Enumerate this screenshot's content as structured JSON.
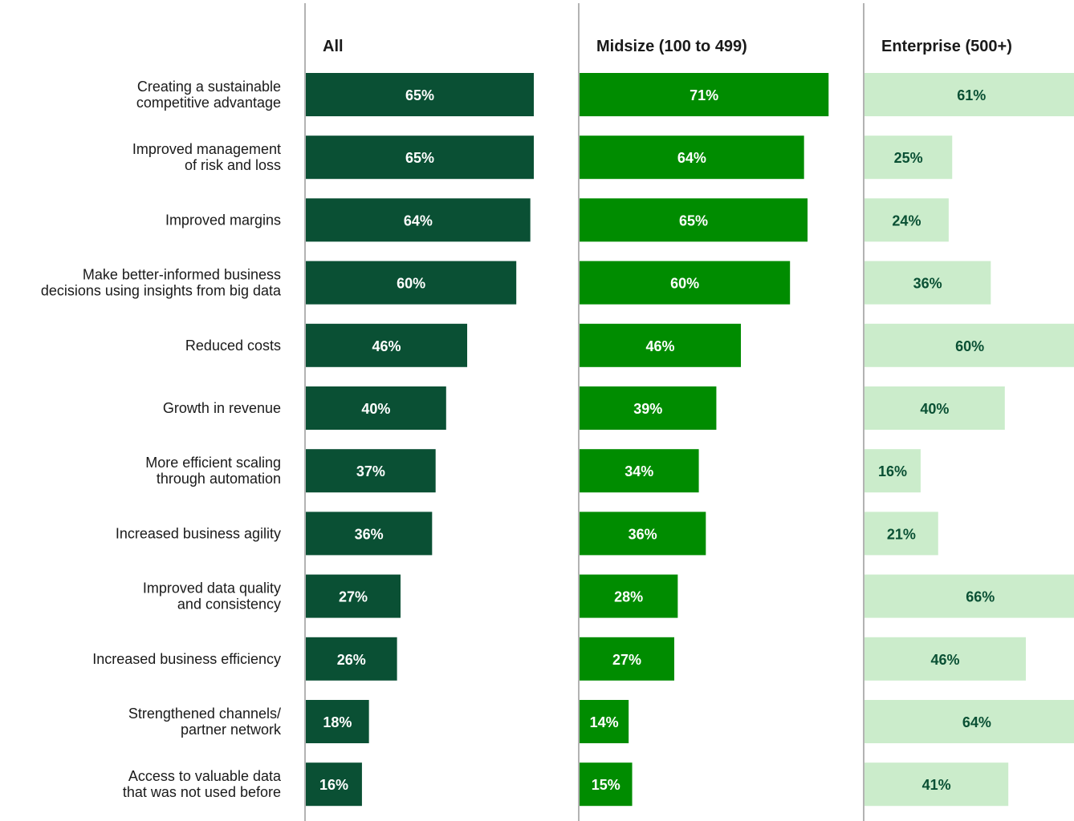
{
  "chart_data": {
    "type": "bar",
    "title": "",
    "colors": {
      "All": "#0a5034",
      "Midsize (100 to 499)": "#008c00",
      "Enterprise (500+)": "#cbeccb"
    },
    "label_colors": {
      "All": "#ffffff",
      "Midsize (100 to 499)": "#ffffff",
      "Enterprise (500+)": "#0a5034"
    },
    "categories": [
      "Creating a sustainable\ncompetitive advantage",
      "Improved management\nof risk and loss",
      "Improved margins",
      "Make better-informed business\ndecisions using insights from big data",
      "Reduced costs",
      "Growth in revenue",
      "More efficient scaling\nthrough automation",
      "Increased business agility",
      "Improved data quality\nand consistency",
      "Increased business efficiency",
      "Strengthened channels/\npartner network",
      "Access to valuable data\nthat was not used before"
    ],
    "series": [
      {
        "name": "All",
        "values": [
          65,
          65,
          64,
          60,
          46,
          40,
          37,
          36,
          27,
          26,
          18,
          16
        ]
      },
      {
        "name": "Midsize (100 to 499)",
        "values": [
          71,
          64,
          65,
          60,
          46,
          39,
          34,
          36,
          28,
          27,
          14,
          15
        ]
      },
      {
        "name": "Enterprise (500+)",
        "values": [
          61,
          25,
          24,
          36,
          60,
          40,
          16,
          21,
          66,
          46,
          64,
          41
        ]
      }
    ],
    "value_suffix": "%"
  }
}
